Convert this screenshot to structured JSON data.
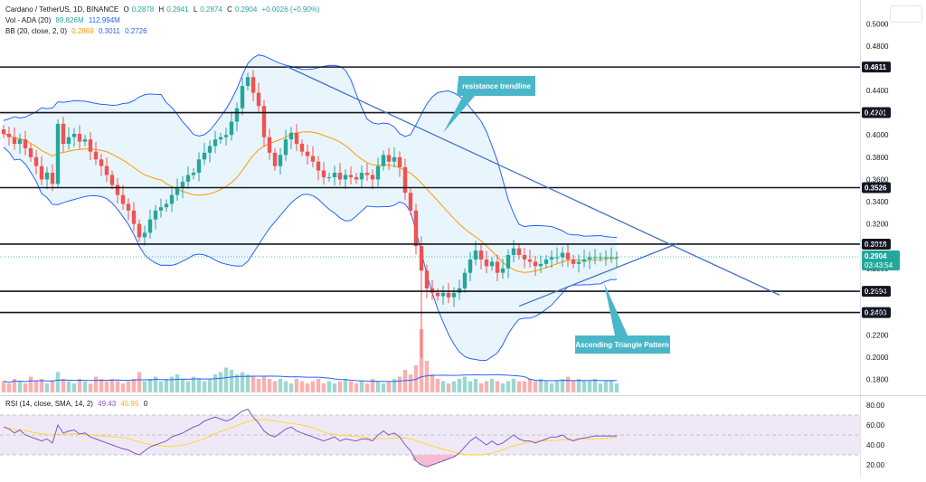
{
  "legend": {
    "symbol": "Cardano / TetherUS, 1D, BINANCE",
    "ohlc": [
      {
        "k": "O",
        "v": "0.2878"
      },
      {
        "k": "H",
        "v": "0.2941"
      },
      {
        "k": "L",
        "v": "0.2874"
      },
      {
        "k": "C",
        "v": "0.2904"
      }
    ],
    "change": "+0.0026 (+0.90%)",
    "vol_label": "Vol - ADA (20)",
    "vol_value": "89.826M",
    "vol_ma": "112.994M",
    "bb_label": "BB (20, close, 2, 0)",
    "bb_basis": "0.2869",
    "bb_upper": "0.3011",
    "bb_lower": "0.2726",
    "rsi_label": "RSI (14, close, SMA, 14, 2)",
    "rsi_value": "49.43",
    "rsi_ma": "45.95",
    "rsi_extra": "0"
  },
  "colors": {
    "up": "#26a69a",
    "down": "#ef5350",
    "bb": "#2962ff",
    "bb_fill": "#e3f2fd",
    "basis": "#ff9800",
    "trend": "#4472c4",
    "callout": "#4ab7c9",
    "rsi_line": "#7e57c2",
    "rsi_ma": "#fdd835",
    "rsi_band": "#ede7f6",
    "level_line": "#131722"
  },
  "price_axis": {
    "ticks": [
      "0.5000",
      "0.4800",
      "0.4400",
      "0.4200",
      "0.4000",
      "0.3800",
      "0.3600",
      "0.3400",
      "0.3200",
      "0.3000",
      "0.2800",
      "0.2600",
      "0.2400",
      "0.2200",
      "0.2000",
      "0.1800"
    ],
    "last_price": "0.2904",
    "countdown": "03:43:54"
  },
  "rsi_axis": {
    "ticks": [
      "80.00",
      "60.00",
      "40.00",
      "20.00"
    ],
    "upper": 70,
    "lower": 30
  },
  "chart_data": {
    "type": "candlestick",
    "title": "Cardano / TetherUS, 1D, BINANCE",
    "ylim": [
      0.17,
      0.51
    ],
    "levels": [
      0.4611,
      0.4201,
      0.3526,
      0.3018,
      0.2594,
      0.2403
    ],
    "level_labels": [
      "0.4611",
      "0.4201",
      "0.3526",
      "0.3018",
      "0.2594",
      "0.2403"
    ],
    "annotations": [
      "resistance trendline",
      "Ascending Triangle Pattern"
    ],
    "resistance_trendline": {
      "from": {
        "bar": 52,
        "price": 0.462
      },
      "to": {
        "bar": 143,
        "price": 0.256
      }
    },
    "support_trendline": {
      "from": {
        "bar": 95,
        "price": 0.246
      },
      "to": {
        "bar": 124,
        "price": 0.302
      }
    },
    "bars": 114,
    "close": [
      0.401,
      0.398,
      0.392,
      0.396,
      0.388,
      0.38,
      0.372,
      0.36,
      0.366,
      0.356,
      0.41,
      0.392,
      0.398,
      0.401,
      0.394,
      0.396,
      0.385,
      0.378,
      0.372,
      0.364,
      0.355,
      0.346,
      0.338,
      0.332,
      0.32,
      0.308,
      0.312,
      0.324,
      0.332,
      0.335,
      0.338,
      0.346,
      0.352,
      0.358,
      0.364,
      0.366,
      0.378,
      0.384,
      0.39,
      0.396,
      0.398,
      0.4,
      0.412,
      0.424,
      0.444,
      0.452,
      0.438,
      0.426,
      0.398,
      0.384,
      0.372,
      0.382,
      0.396,
      0.402,
      0.392,
      0.385,
      0.381,
      0.376,
      0.368,
      0.362,
      0.362,
      0.366,
      0.36,
      0.364,
      0.362,
      0.36,
      0.366,
      0.364,
      0.36,
      0.372,
      0.382,
      0.376,
      0.38,
      0.371,
      0.348,
      0.332,
      0.3,
      0.278,
      0.262,
      0.258,
      0.255,
      0.258,
      0.254,
      0.258,
      0.262,
      0.276,
      0.288,
      0.296,
      0.288,
      0.282,
      0.286,
      0.276,
      0.28,
      0.292,
      0.298,
      0.292,
      0.288,
      0.286,
      0.282,
      0.284,
      0.288,
      0.29,
      0.29,
      0.294,
      0.288,
      0.284,
      0.286,
      0.288,
      0.29,
      0.29,
      0.29,
      0.29,
      0.29,
      0.29
    ],
    "volume": [
      5,
      4,
      6,
      5,
      4,
      7,
      5,
      6,
      4,
      5,
      9,
      6,
      5,
      4,
      6,
      5,
      4,
      7,
      6,
      5,
      6,
      5,
      4,
      5,
      6,
      9,
      5,
      6,
      7,
      5,
      6,
      7,
      8,
      6,
      5,
      7,
      6,
      5,
      6,
      8,
      9,
      11,
      10,
      8,
      9,
      8,
      7,
      6,
      7,
      6,
      5,
      6,
      5,
      4,
      6,
      5,
      4,
      5,
      6,
      4,
      5,
      4,
      5,
      6,
      5,
      4,
      5,
      4,
      6,
      5,
      4,
      5,
      6,
      7,
      10,
      8,
      12,
      28,
      14,
      8,
      6,
      5,
      4,
      5,
      6,
      7,
      5,
      6,
      4,
      5,
      6,
      5,
      4,
      5,
      6,
      5,
      5,
      6,
      5,
      6,
      5,
      4,
      5,
      6,
      7,
      5,
      6,
      5,
      5,
      6,
      4,
      5,
      5,
      4
    ],
    "rsi": [
      58,
      56,
      52,
      55,
      50,
      48,
      46,
      44,
      46,
      42,
      60,
      52,
      54,
      55,
      51,
      52,
      48,
      46,
      44,
      42,
      40,
      38,
      36,
      35,
      32,
      30,
      34,
      38,
      40,
      42,
      44,
      48,
      50,
      52,
      55,
      58,
      60,
      64,
      66,
      68,
      66,
      64,
      66,
      70,
      74,
      76,
      68,
      62,
      54,
      50,
      48,
      52,
      56,
      58,
      54,
      52,
      50,
      48,
      46,
      44,
      46,
      48,
      44,
      46,
      45,
      44,
      46,
      46,
      44,
      50,
      54,
      50,
      52,
      48,
      40,
      34,
      24,
      20,
      18,
      20,
      22,
      24,
      26,
      28,
      32,
      38,
      44,
      48,
      44,
      40,
      44,
      40,
      42,
      46,
      50,
      46,
      44,
      44,
      42,
      44,
      46,
      48,
      48,
      50,
      46,
      44,
      46,
      47,
      48,
      49,
      49,
      49,
      49,
      49
    ]
  }
}
